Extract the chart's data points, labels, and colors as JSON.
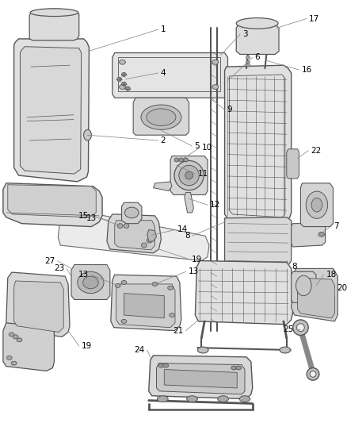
{
  "background_color": "#ffffff",
  "line_color": "#555555",
  "label_fontsize": 7.5,
  "leader_color": "#888888",
  "part_color": "#e8e8e8",
  "dark_part_color": "#c8c8c8"
}
